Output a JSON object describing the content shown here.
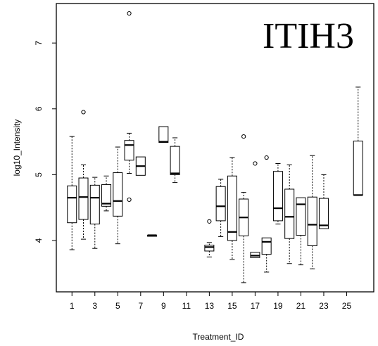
{
  "chart_data": {
    "type": "box",
    "title": "ITIH3",
    "xlabel": "Treatment_ID",
    "ylabel": "log10_Intensity",
    "x_ticks": [
      "1",
      "3",
      "5",
      "7",
      "9",
      "11",
      "13",
      "15",
      "17",
      "19",
      "21",
      "23",
      "25"
    ],
    "y_ticks": [
      "4",
      "5",
      "6",
      "7"
    ],
    "xlim": [
      0,
      27
    ],
    "ylim": [
      3.22,
      7.6
    ],
    "grid": false,
    "boxes": [
      {
        "x": 1,
        "min": 3.86,
        "q1": 4.27,
        "median": 4.65,
        "q3": 4.83,
        "max": 5.58,
        "outliers": []
      },
      {
        "x": 2,
        "min": 4.02,
        "q1": 4.32,
        "median": 4.66,
        "q3": 4.95,
        "max": 5.15,
        "outliers": [
          5.95
        ]
      },
      {
        "x": 3,
        "min": 3.88,
        "q1": 4.25,
        "median": 4.65,
        "q3": 4.84,
        "max": 4.96,
        "outliers": []
      },
      {
        "x": 4,
        "min": 4.45,
        "q1": 4.52,
        "median": 4.56,
        "q3": 4.85,
        "max": 4.98,
        "outliers": []
      },
      {
        "x": 5,
        "min": 3.95,
        "q1": 4.37,
        "median": 4.6,
        "q3": 5.03,
        "max": 5.42,
        "outliers": []
      },
      {
        "x": 6,
        "min": 5.02,
        "q1": 5.22,
        "median": 5.45,
        "q3": 5.52,
        "max": 5.63,
        "outliers": [
          7.45,
          4.62
        ]
      },
      {
        "x": 7,
        "min": 4.99,
        "q1": 4.99,
        "median": 5.13,
        "q3": 5.27,
        "max": 5.27,
        "outliers": []
      },
      {
        "x": 8,
        "min": 4.07,
        "q1": 4.07,
        "median": 4.08,
        "q3": 4.08,
        "max": 4.08,
        "outliers": []
      },
      {
        "x": 9,
        "min": 5.49,
        "q1": 5.49,
        "median": 5.5,
        "q3": 5.73,
        "max": 5.73,
        "outliers": []
      },
      {
        "x": 10,
        "min": 4.88,
        "q1": 5.0,
        "median": 5.02,
        "q3": 5.43,
        "max": 5.56,
        "outliers": []
      },
      {
        "x": 13,
        "min": 3.75,
        "q1": 3.84,
        "median": 3.9,
        "q3": 3.93,
        "max": 3.97,
        "outliers": [
          4.29
        ]
      },
      {
        "x": 14,
        "min": 4.06,
        "q1": 4.3,
        "median": 4.52,
        "q3": 4.82,
        "max": 4.93,
        "outliers": []
      },
      {
        "x": 15,
        "min": 3.71,
        "q1": 4.0,
        "median": 4.13,
        "q3": 4.98,
        "max": 5.26,
        "outliers": []
      },
      {
        "x": 16,
        "min": 3.36,
        "q1": 4.07,
        "median": 4.35,
        "q3": 4.63,
        "max": 4.73,
        "outliers": [
          5.58
        ]
      },
      {
        "x": 17,
        "min": 3.74,
        "q1": 3.74,
        "median": 3.77,
        "q3": 3.82,
        "max": 3.82,
        "outliers": [
          5.17
        ]
      },
      {
        "x": 18,
        "min": 3.52,
        "q1": 3.79,
        "median": 3.98,
        "q3": 4.04,
        "max": 4.04,
        "outliers": [
          5.26
        ]
      },
      {
        "x": 19,
        "min": 4.25,
        "q1": 4.3,
        "median": 4.49,
        "q3": 5.05,
        "max": 5.17,
        "outliers": []
      },
      {
        "x": 20,
        "min": 3.65,
        "q1": 4.03,
        "median": 4.36,
        "q3": 4.78,
        "max": 5.15,
        "outliers": []
      },
      {
        "x": 21,
        "min": 3.63,
        "q1": 4.08,
        "median": 4.55,
        "q3": 4.65,
        "max": 4.65,
        "outliers": []
      },
      {
        "x": 22,
        "min": 3.57,
        "q1": 3.92,
        "median": 4.24,
        "q3": 4.66,
        "max": 5.29,
        "outliers": []
      },
      {
        "x": 23,
        "min": 4.18,
        "q1": 4.18,
        "median": 4.23,
        "q3": 4.64,
        "max": 5.0,
        "outliers": []
      },
      {
        "x": 26,
        "min": 4.69,
        "q1": 4.69,
        "median": 4.69,
        "q3": 5.51,
        "max": 6.33,
        "outliers": []
      }
    ]
  }
}
